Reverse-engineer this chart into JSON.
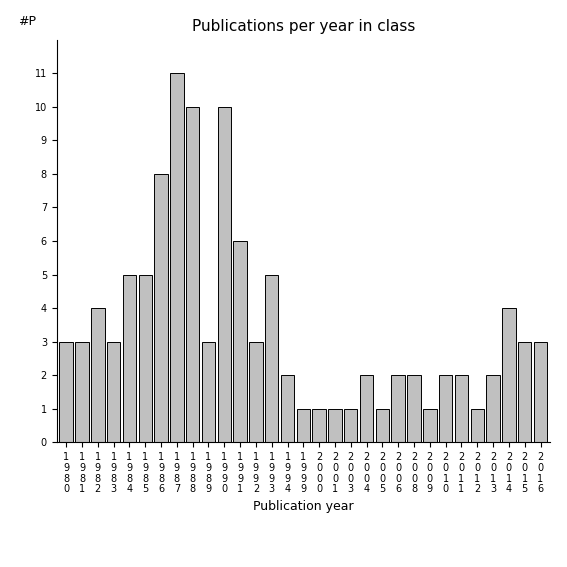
{
  "years": [
    "1980",
    "1981",
    "1982",
    "1983",
    "1984",
    "1985",
    "1986",
    "1987",
    "1988",
    "1989",
    "1990",
    "1991",
    "1992",
    "1993",
    "1994",
    "1999",
    "2000",
    "2001",
    "2003",
    "2004",
    "2005",
    "2006",
    "2008",
    "2009",
    "2010",
    "2011",
    "2012",
    "2013",
    "2014",
    "2015",
    "2016"
  ],
  "values": [
    3,
    3,
    4,
    3,
    5,
    5,
    8,
    11,
    10,
    3,
    10,
    6,
    3,
    5,
    2,
    1,
    1,
    1,
    1,
    2,
    1,
    2,
    2,
    1,
    2,
    2,
    1,
    2,
    4,
    3,
    3
  ],
  "bar_color": "#c0c0c0",
  "bar_edge_color": "#000000",
  "title": "Publications per year in class",
  "xlabel": "Publication year",
  "ylabel": "#P",
  "ylim": [
    0,
    12
  ],
  "yticks": [
    0,
    1,
    2,
    3,
    4,
    5,
    6,
    7,
    8,
    9,
    10,
    11
  ],
  "background_color": "#ffffff",
  "title_fontsize": 11,
  "label_fontsize": 9,
  "tick_fontsize": 7
}
